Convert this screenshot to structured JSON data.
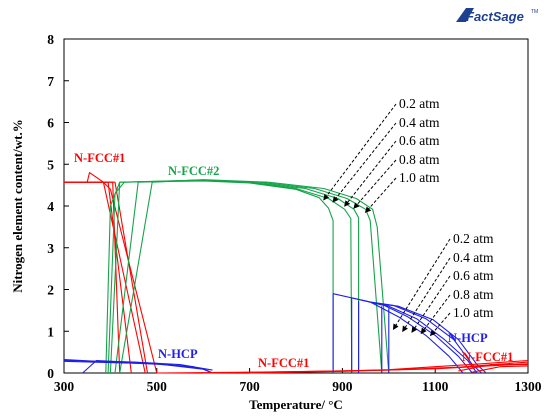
{
  "logo": {
    "text": "FactSage",
    "tm": "TM"
  },
  "chart_data": {
    "type": "line",
    "xlabel": "Temperature/ °C",
    "ylabel": "Nitrogen element content/wt.%",
    "xlim": [
      300,
      1300
    ],
    "ylim": [
      0,
      8
    ],
    "xticks": [
      300,
      500,
      700,
      900,
      1100,
      1300
    ],
    "yticks": [
      0,
      1,
      2,
      3,
      4,
      5,
      6,
      7,
      8
    ],
    "grid": false,
    "colors": {
      "red": "#ff0000",
      "green": "#16a34a",
      "blue": "#1f1fe6"
    },
    "labels": [
      {
        "text": "N-FCC#1",
        "color": "#ff0000"
      },
      {
        "text": "N-FCC#2",
        "color": "#16a34a"
      },
      {
        "text": "N-HCP",
        "color": "#1f1fe6"
      },
      {
        "text": "N-FCC#1",
        "color": "#ff0000"
      },
      {
        "text": "N-HCP",
        "color": "#1f1fe6"
      },
      {
        "text": "N-FCC#1",
        "color": "#ff0000"
      }
    ],
    "pressure_annotations": {
      "upper": [
        "0.2 atm",
        "0.4 atm",
        "0.6 atm",
        "0.8 atm",
        "1.0 atm"
      ],
      "lower": [
        "0.2 atm",
        "0.4 atm",
        "0.6 atm",
        "0.8 atm",
        "1.0 atm"
      ]
    },
    "series": [
      {
        "group": "N-FCC#1 (low T)",
        "color": "#ff0000",
        "lines": [
          [
            [
              300,
              4.57
            ],
            [
              350,
              4.57
            ],
            [
              355,
              4.8
            ],
            [
              385,
              4.57
            ],
            [
              400,
              4.4
            ],
            [
              500,
              0
            ]
          ],
          [
            [
              300,
              4.57
            ],
            [
              385,
              4.57
            ],
            [
              475,
              0
            ]
          ],
          [
            [
              300,
              4.57
            ],
            [
              395,
              4.57
            ],
            [
              445,
              0
            ]
          ],
          [
            [
              300,
              4.57
            ],
            [
              405,
              4.57
            ],
            [
              420,
              0
            ]
          ],
          [
            [
              300,
              4.57
            ],
            [
              410,
              4.57
            ],
            [
              480,
              0
            ]
          ]
        ]
      },
      {
        "group": "N-FCC#2",
        "color": "#16a34a",
        "lines": [
          [
            [
              390,
              0
            ],
            [
              400,
              4.0
            ],
            [
              420,
              4.57
            ],
            [
              600,
              4.6
            ],
            [
              700,
              4.55
            ],
            [
              800,
              4.4
            ],
            [
              850,
              4.2
            ],
            [
              870,
              3.95
            ],
            [
              880,
              3.65
            ],
            [
              880,
              0
            ]
          ],
          [
            [
              395,
              0
            ],
            [
              410,
              4.3
            ],
            [
              430,
              4.57
            ],
            [
              600,
              4.62
            ],
            [
              700,
              4.56
            ],
            [
              800,
              4.42
            ],
            [
              870,
              4.18
            ],
            [
              905,
              3.92
            ],
            [
              918,
              3.7
            ],
            [
              920,
              0
            ]
          ],
          [
            [
              400,
              0
            ],
            [
              420,
              4.57
            ],
            [
              600,
              4.62
            ],
            [
              700,
              4.57
            ],
            [
              820,
              4.42
            ],
            [
              890,
              4.18
            ],
            [
              925,
              3.92
            ],
            [
              935,
              3.72
            ],
            [
              935,
              0
            ]
          ],
          [
            [
              410,
              0
            ],
            [
              460,
              4.57
            ],
            [
              600,
              4.62
            ],
            [
              720,
              4.57
            ],
            [
              840,
              4.42
            ],
            [
              910,
              4.18
            ],
            [
              950,
              3.92
            ],
            [
              960,
              3.65
            ],
            [
              985,
              0
            ]
          ],
          [
            [
              420,
              0
            ],
            [
              490,
              4.57
            ],
            [
              600,
              4.63
            ],
            [
              740,
              4.57
            ],
            [
              860,
              4.42
            ],
            [
              930,
              4.18
            ],
            [
              965,
              3.92
            ],
            [
              975,
              3.5
            ],
            [
              1000,
              0
            ]
          ]
        ]
      },
      {
        "group": "N-HCP (low T)",
        "color": "#1f1fe6",
        "lines": [
          [
            [
              300,
              0.3
            ],
            [
              450,
              0.26
            ],
            [
              550,
              0.2
            ],
            [
              620,
              0.07
            ]
          ],
          [
            [
              300,
              0.28
            ],
            [
              500,
              0.22
            ],
            [
              600,
              0.09
            ],
            [
              620,
              0
            ]
          ],
          [
            [
              300,
              0.32
            ],
            [
              400,
              0.26
            ],
            [
              500,
              0.21
            ],
            [
              580,
              0.15
            ]
          ],
          [
            [
              340,
              0
            ],
            [
              370,
              0.3
            ],
            [
              500,
              0.23
            ],
            [
              600,
              0.1
            ],
            [
              620,
              0
            ]
          ]
        ]
      },
      {
        "group": "N-HCP (high T)",
        "color": "#1f1fe6",
        "lines": [
          [
            [
              880,
              1.9
            ],
            [
              960,
              1.7
            ],
            [
              1020,
              1.35
            ],
            [
              1080,
              0.9
            ],
            [
              1130,
              0.4
            ],
            [
              1160,
              0
            ]
          ],
          [
            [
              920,
              1.8
            ],
            [
              990,
              1.62
            ],
            [
              1040,
              1.35
            ],
            [
              1100,
              0.9
            ],
            [
              1150,
              0.4
            ],
            [
              1180,
              0
            ]
          ],
          [
            [
              940,
              1.75
            ],
            [
              1000,
              1.6
            ],
            [
              1060,
              1.3
            ],
            [
              1120,
              0.8
            ],
            [
              1170,
              0.3
            ],
            [
              1190,
              0
            ]
          ],
          [
            [
              960,
              1.7
            ],
            [
              1010,
              1.62
            ],
            [
              1080,
              1.3
            ],
            [
              1140,
              0.8
            ],
            [
              1180,
              0.2
            ],
            [
              1200,
              0
            ]
          ],
          [
            [
              985,
              1.65
            ],
            [
              1020,
              1.6
            ],
            [
              1095,
              1.28
            ],
            [
              1150,
              0.8
            ],
            [
              1190,
              0.2
            ],
            [
              1210,
              0
            ]
          ],
          [
            [
              880,
              1.9
            ],
            [
              880,
              0
            ]
          ],
          [
            [
              920,
              1.8
            ],
            [
              920,
              0
            ]
          ],
          [
            [
              935,
              1.72
            ],
            [
              935,
              0
            ]
          ],
          [
            [
              985,
              1.6
            ],
            [
              985,
              0
            ]
          ],
          [
            [
              1000,
              1.55
            ],
            [
              1000,
              0
            ]
          ]
        ]
      },
      {
        "group": "N-FCC#1 (high T)",
        "color": "#ff0000",
        "lines": [
          [
            [
              500,
              0
            ],
            [
              700,
              0.02
            ],
            [
              900,
              0.05
            ],
            [
              1000,
              0.08
            ],
            [
              1100,
              0.15
            ],
            [
              1200,
              0.22
            ],
            [
              1300,
              0.3
            ]
          ],
          [
            [
              600,
              0
            ],
            [
              800,
              0.03
            ],
            [
              1000,
              0.07
            ],
            [
              1150,
              0.14
            ],
            [
              1300,
              0.26
            ]
          ],
          [
            [
              700,
              0
            ],
            [
              900,
              0.04
            ],
            [
              1100,
              0.1
            ],
            [
              1300,
              0.22
            ]
          ],
          [
            [
              1150,
              0.05
            ],
            [
              1220,
              0.2
            ],
            [
              1300,
              0.2
            ]
          ],
          [
            [
              1180,
              0.02
            ],
            [
              1240,
              0.15
            ],
            [
              1300,
              0.17
            ]
          ]
        ]
      }
    ]
  }
}
